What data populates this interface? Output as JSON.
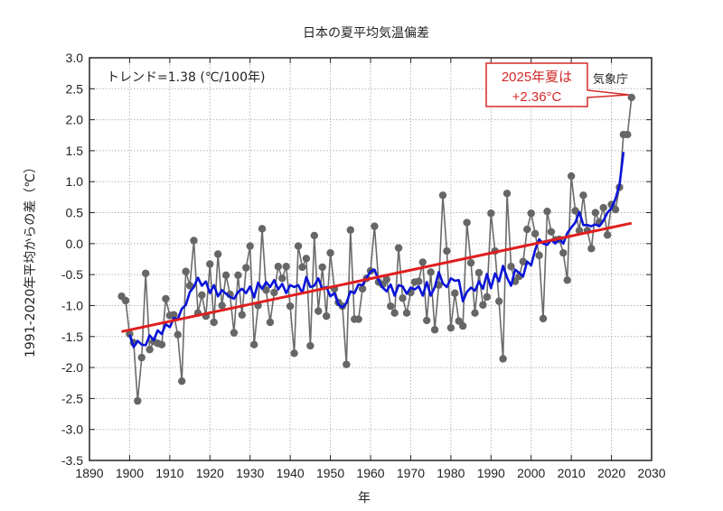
{
  "chart_data": {
    "type": "line",
    "title": "日本の夏平均気温偏差",
    "xlabel": "年",
    "ylabel": "1991-2020年平均からの差（℃）",
    "xlim": [
      1890,
      2030
    ],
    "ylim": [
      -3.5,
      3.0
    ],
    "x_ticks": [
      1890,
      1900,
      1910,
      1920,
      1930,
      1940,
      1950,
      1960,
      1970,
      1980,
      1990,
      2000,
      2010,
      2020,
      2030
    ],
    "x_tick_labels": [
      "1890",
      "1900",
      "1910",
      "1920",
      "1930",
      "1940",
      "1950",
      "1960",
      "1970",
      "1980",
      "1990",
      "2000",
      "2010",
      "2020",
      "2030"
    ],
    "y_ticks": [
      3.0,
      2.5,
      2.0,
      1.5,
      1.0,
      0.5,
      0.0,
      -0.5,
      -1.0,
      -1.5,
      -2.0,
      -2.5,
      -3.0,
      -3.5
    ],
    "y_tick_labels": [
      "3.0",
      "2.5",
      "2.0",
      "1.5",
      "1.0",
      "0.5",
      "0.0",
      "-0.5",
      "-1.0",
      "-1.5",
      "-2.0",
      "-2.5",
      "-3.0",
      "-3.5"
    ],
    "grid": true,
    "trend_annotation": "トレンド=1.38 (℃/100年)",
    "source_label": "気象庁",
    "callout": {
      "line1": "2025年夏は",
      "line2": "+2.36°C"
    },
    "colors": {
      "annual": "#6b6b6b",
      "marker": "#666666",
      "running_mean": "#0a14d8",
      "trend": "#e01e1e",
      "callout": "#d42a2a",
      "grid": "#b5b5b5"
    },
    "series": [
      {
        "name": "annual",
        "x": [
          1898,
          1899,
          1900,
          1901,
          1902,
          1903,
          1904,
          1905,
          1906,
          1907,
          1908,
          1909,
          1910,
          1911,
          1912,
          1913,
          1914,
          1915,
          1916,
          1917,
          1918,
          1919,
          1920,
          1921,
          1922,
          1923,
          1924,
          1925,
          1926,
          1927,
          1928,
          1929,
          1930,
          1931,
          1932,
          1933,
          1934,
          1935,
          1936,
          1937,
          1938,
          1939,
          1940,
          1941,
          1942,
          1943,
          1944,
          1945,
          1946,
          1947,
          1948,
          1949,
          1950,
          1951,
          1952,
          1953,
          1954,
          1955,
          1956,
          1957,
          1958,
          1959,
          1960,
          1961,
          1962,
          1963,
          1964,
          1965,
          1966,
          1967,
          1968,
          1969,
          1970,
          1971,
          1972,
          1973,
          1974,
          1975,
          1976,
          1977,
          1978,
          1979,
          1980,
          1981,
          1982,
          1983,
          1984,
          1985,
          1986,
          1987,
          1988,
          1989,
          1990,
          1991,
          1992,
          1993,
          1994,
          1995,
          1996,
          1997,
          1998,
          1999,
          2000,
          2001,
          2002,
          2003,
          2004,
          2005,
          2006,
          2007,
          2008,
          2009,
          2010,
          2011,
          2012,
          2013,
          2014,
          2015,
          2016,
          2017,
          2018,
          2019,
          2020,
          2021,
          2022,
          2023,
          2024,
          2025
        ],
        "values": [
          -0.85,
          -0.92,
          -1.46,
          -1.6,
          -2.54,
          -1.84,
          -0.48,
          -1.71,
          -1.58,
          -1.61,
          -1.63,
          -0.89,
          -1.16,
          -1.15,
          -1.47,
          -2.22,
          -0.45,
          -0.68,
          0.05,
          -1.12,
          -0.83,
          -1.17,
          -0.33,
          -1.27,
          -0.17,
          -1.0,
          -0.51,
          -0.82,
          -1.44,
          -0.51,
          -1.15,
          -0.39,
          -0.04,
          -1.63,
          -1.0,
          0.24,
          -0.75,
          -1.27,
          -0.79,
          -0.37,
          -0.56,
          -0.37,
          -1.01,
          -1.77,
          -0.04,
          -0.38,
          -0.24,
          -1.65,
          0.13,
          -1.09,
          -0.38,
          -1.17,
          -0.15,
          -0.73,
          -0.95,
          -1.01,
          -1.95,
          0.22,
          -1.22,
          -1.22,
          -0.73,
          -0.56,
          -0.44,
          0.28,
          -0.62,
          -0.66,
          -0.58,
          -1.01,
          -1.12,
          -0.07,
          -0.88,
          -1.12,
          -0.79,
          -0.62,
          -0.61,
          -0.3,
          -1.24,
          -0.46,
          -1.39,
          -0.67,
          0.78,
          -0.12,
          -1.36,
          -0.8,
          -1.25,
          -1.33,
          0.34,
          -0.31,
          -1.12,
          -0.47,
          -0.99,
          -0.86,
          0.49,
          -0.12,
          -0.93,
          -1.86,
          0.81,
          -0.37,
          -0.61,
          -0.53,
          -0.29,
          0.23,
          0.49,
          0.16,
          -0.19,
          -1.21,
          0.52,
          0.19,
          0.06,
          0.07,
          -0.15,
          -0.59,
          1.09,
          0.53,
          0.21,
          0.78,
          0.21,
          -0.08,
          0.5,
          0.35,
          0.58,
          0.14,
          0.63,
          0.55,
          0.91,
          1.76,
          1.76,
          2.36
        ]
      },
      {
        "name": "5-year running mean",
        "x": [
          1900,
          1901,
          1902,
          1903,
          1904,
          1905,
          1906,
          1907,
          1908,
          1909,
          1910,
          1911,
          1912,
          1913,
          1914,
          1915,
          1916,
          1917,
          1918,
          1919,
          1920,
          1921,
          1922,
          1923,
          1924,
          1925,
          1926,
          1927,
          1928,
          1929,
          1930,
          1931,
          1932,
          1933,
          1934,
          1935,
          1936,
          1937,
          1938,
          1939,
          1940,
          1941,
          1942,
          1943,
          1944,
          1945,
          1946,
          1947,
          1948,
          1949,
          1950,
          1951,
          1952,
          1953,
          1954,
          1955,
          1956,
          1957,
          1958,
          1959,
          1960,
          1961,
          1962,
          1963,
          1964,
          1965,
          1966,
          1967,
          1968,
          1969,
          1970,
          1971,
          1972,
          1973,
          1974,
          1975,
          1976,
          1977,
          1978,
          1979,
          1980,
          1981,
          1982,
          1983,
          1984,
          1985,
          1986,
          1987,
          1988,
          1989,
          1990,
          1991,
          1992,
          1993,
          1994,
          1995,
          1996,
          1997,
          1998,
          1999,
          2000,
          2001,
          2002,
          2003,
          2004,
          2005,
          2006,
          2007,
          2008,
          2009,
          2010,
          2011,
          2012,
          2013,
          2014,
          2015,
          2016,
          2017,
          2018,
          2019,
          2020,
          2021,
          2022,
          2023
        ],
        "values": [
          -1.47,
          -1.67,
          -1.57,
          -1.63,
          -1.64,
          -1.48,
          -1.56,
          -1.4,
          -1.46,
          -1.3,
          -1.35,
          -1.2,
          -1.22,
          -1.05,
          -0.99,
          -0.78,
          -0.7,
          -0.55,
          -0.68,
          -0.61,
          -0.8,
          -0.67,
          -0.85,
          -0.75,
          -0.81,
          -0.86,
          -0.89,
          -0.78,
          -0.73,
          -0.8,
          -0.69,
          -0.87,
          -0.63,
          -0.73,
          -0.62,
          -0.7,
          -0.59,
          -0.74,
          -0.65,
          -0.8,
          -0.67,
          -0.7,
          -0.67,
          -0.8,
          -0.54,
          -0.7,
          -0.68,
          -0.56,
          -0.73,
          -0.7,
          -0.85,
          -0.8,
          -0.98,
          -1.03,
          -0.96,
          -0.77,
          -0.8,
          -0.66,
          -0.67,
          -0.55,
          -0.45,
          -0.42,
          -0.59,
          -0.71,
          -0.77,
          -0.66,
          -0.84,
          -0.67,
          -0.69,
          -0.81,
          -0.71,
          -0.74,
          -0.69,
          -0.84,
          -0.62,
          -0.84,
          -0.7,
          -0.46,
          -0.64,
          -0.7,
          -0.56,
          -0.6,
          -0.59,
          -0.93,
          -0.78,
          -0.71,
          -0.76,
          -0.61,
          -0.73,
          -0.49,
          -0.72,
          -0.48,
          -0.61,
          -0.36,
          -0.55,
          -0.68,
          -0.42,
          -0.47,
          -0.53,
          -0.29,
          -0.35,
          -0.1,
          0.07,
          0.0,
          -0.02,
          0.06,
          0.0,
          0.07,
          0.0,
          0.17,
          0.26,
          0.34,
          0.51,
          0.3,
          0.3,
          0.28,
          0.31,
          0.28,
          0.37,
          0.5,
          0.57,
          0.72,
          0.95,
          1.48
        ]
      },
      {
        "name": "trend",
        "x": [
          1898,
          2025
        ],
        "values": [
          -1.42,
          0.33
        ]
      }
    ]
  }
}
